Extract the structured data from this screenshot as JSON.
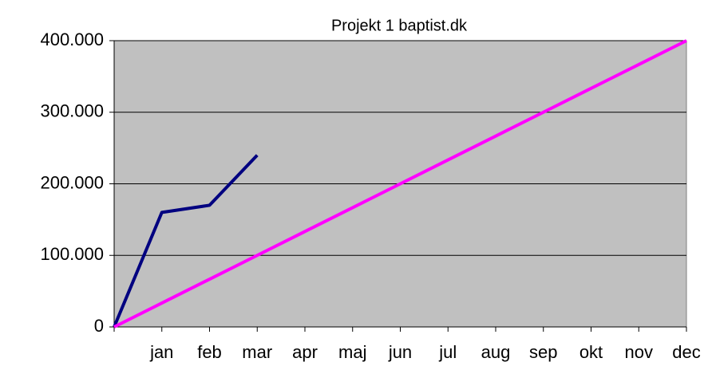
{
  "chart_data": {
    "type": "line",
    "title": "Projekt 1 baptist.dk",
    "categories": [
      null,
      "jan",
      "feb",
      "mar",
      "apr",
      "maj",
      "jun",
      "jul",
      "aug",
      "sep",
      "okt",
      "nov",
      "dec"
    ],
    "series": [
      {
        "color": "#000080",
        "values": [
          0,
          160000,
          170000,
          240000,
          null,
          null,
          null,
          null,
          null,
          null,
          null,
          null,
          null
        ]
      },
      {
        "color": "#ff00ff",
        "values": [
          0,
          33333,
          66667,
          100000,
          133333,
          166667,
          200000,
          233333,
          266667,
          300000,
          333333,
          366667,
          400000
        ]
      }
    ],
    "ylim": [
      0,
      400000
    ],
    "yticks": [
      0,
      {
        "value": 100000,
        "label": "100.000"
      },
      {
        "value": 200000,
        "label": "200.000"
      },
      {
        "value": 300000,
        "label": "300.000"
      },
      {
        "value": 400000,
        "label": "400.000"
      }
    ],
    "grid": true,
    "plot_background": "#c0c0c0"
  }
}
